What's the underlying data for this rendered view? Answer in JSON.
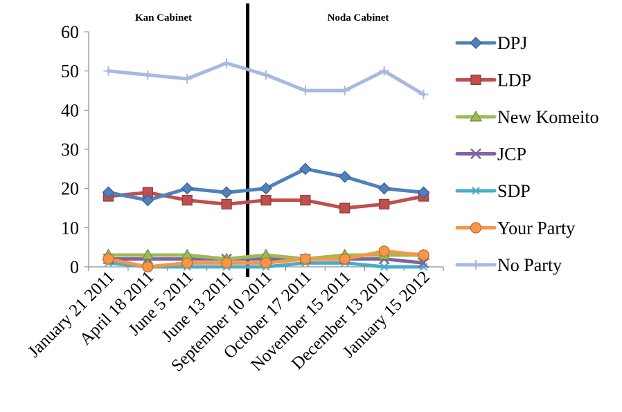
{
  "chart_data": {
    "type": "line",
    "title": "",
    "xlabel": "",
    "ylabel": "",
    "ylim": [
      0,
      60
    ],
    "yticks": [
      0,
      10,
      20,
      30,
      40,
      50,
      60
    ],
    "grid": false,
    "legend_position": "right",
    "categories": [
      "January 21 2011",
      "April 18 2011",
      "June 5 2011",
      "June 13 2011",
      "September 10 2011",
      "October 17 2011",
      "November 15 2011",
      "December 13 2011",
      "January 15 2012"
    ],
    "annotations": [
      "Kan Cabinet",
      "Noda Cabinet"
    ],
    "series": [
      {
        "name": "DPJ",
        "color": "#4F81BD",
        "marker": "diamond",
        "values": [
          19,
          17,
          20,
          19,
          20,
          25,
          23,
          20,
          19
        ]
      },
      {
        "name": "LDP",
        "color": "#C0504D",
        "marker": "square",
        "values": [
          18,
          19,
          17,
          16,
          17,
          17,
          15,
          16,
          18
        ]
      },
      {
        "name": "New Komeito",
        "color": "#9BBB59",
        "marker": "triangle",
        "values": [
          3,
          3,
          3,
          2,
          3,
          2,
          3,
          3,
          3
        ]
      },
      {
        "name": "JCP",
        "color": "#8064A2",
        "marker": "x",
        "values": [
          2,
          2,
          2,
          2,
          2,
          2,
          2,
          2,
          1
        ]
      },
      {
        "name": "SDP",
        "color": "#4BACC6",
        "marker": "star",
        "values": [
          1,
          0,
          0,
          0,
          0,
          1,
          1,
          0,
          0
        ]
      },
      {
        "name": "Your Party",
        "color": "#F79646",
        "marker": "circle",
        "values": [
          2,
          0,
          1,
          1,
          1,
          2,
          2,
          4,
          3
        ]
      },
      {
        "name": "No Party",
        "color": "#A7B9E3",
        "marker": "plus",
        "values": [
          50,
          49,
          48,
          52,
          49,
          45,
          45,
          50,
          44
        ]
      }
    ]
  }
}
